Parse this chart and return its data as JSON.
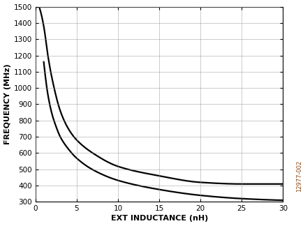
{
  "title": "",
  "xlabel": "EXT INDUCTANCE (nH)",
  "ylabel": "FREQUENCY (MHz)",
  "xlim": [
    0,
    30
  ],
  "ylim": [
    300,
    1500
  ],
  "xticks": [
    0,
    5,
    10,
    15,
    20,
    25,
    30
  ],
  "yticks": [
    300,
    400,
    500,
    600,
    700,
    800,
    900,
    1000,
    1100,
    1200,
    1300,
    1400,
    1500
  ],
  "curve1_x": [
    0.5,
    1.0,
    1.5,
    2.0,
    2.5,
    3.0,
    3.5,
    4.0,
    5.0,
    6.0,
    7.0,
    8.0,
    9.0,
    10.0,
    12.0,
    14.0,
    16.0,
    18.0,
    20.0,
    22.0,
    24.0,
    26.0,
    28.0,
    30.0
  ],
  "curve1_y": [
    1490,
    1380,
    1160,
    1020,
    920,
    848,
    792,
    748,
    680,
    632,
    595,
    565,
    540,
    518,
    485,
    460,
    440,
    422,
    408,
    396,
    386,
    376,
    368,
    410
  ],
  "curve2_x": [
    1.0,
    1.5,
    2.0,
    2.5,
    3.0,
    3.5,
    4.0,
    5.0,
    6.0,
    7.0,
    8.0,
    9.0,
    10.0,
    12.0,
    14.0,
    16.0,
    18.0,
    20.0,
    22.0,
    24.0,
    26.0,
    28.0,
    30.0
  ],
  "curve2_y": [
    1160,
    960,
    840,
    762,
    705,
    660,
    624,
    568,
    528,
    497,
    472,
    450,
    432,
    400,
    376,
    354,
    336,
    318,
    305,
    355,
    340,
    328,
    315
  ],
  "line_color": "#000000",
  "line_width": 1.6,
  "bg_color": "#ffffff",
  "grid_color": "#999999",
  "watermark": "12977-002",
  "xlabel_fontsize": 8,
  "ylabel_fontsize": 8,
  "tick_fontsize": 7.5
}
